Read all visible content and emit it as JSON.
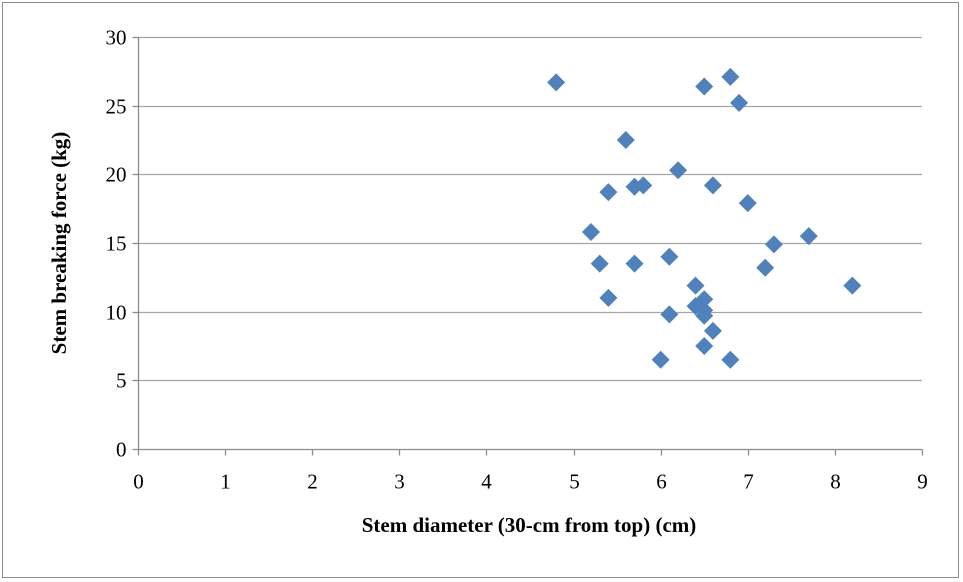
{
  "chart_data": {
    "type": "scatter",
    "title": "",
    "xlabel": "Stem diameter (30-cm from top) (cm)",
    "ylabel": "Stem breaking force (kg)",
    "xlim": [
      0,
      9
    ],
    "ylim": [
      0,
      30
    ],
    "x_ticks": [
      0,
      1,
      2,
      3,
      4,
      5,
      6,
      7,
      8,
      9
    ],
    "y_ticks": [
      0,
      5,
      10,
      15,
      20,
      25,
      30
    ],
    "grid": "horizontal",
    "legend": "none",
    "marker": "diamond",
    "marker_color": "#4f81bd",
    "gridline_color": "#a6a6a6",
    "series": [
      {
        "points": [
          {
            "x": 4.8,
            "y": 26.7
          },
          {
            "x": 6.8,
            "y": 27.1
          },
          {
            "x": 6.5,
            "y": 26.4
          },
          {
            "x": 6.9,
            "y": 25.2
          },
          {
            "x": 5.6,
            "y": 22.5
          },
          {
            "x": 6.2,
            "y": 20.3
          },
          {
            "x": 5.4,
            "y": 18.7
          },
          {
            "x": 5.7,
            "y": 19.1
          },
          {
            "x": 5.8,
            "y": 19.2
          },
          {
            "x": 6.6,
            "y": 19.2
          },
          {
            "x": 7.0,
            "y": 17.9
          },
          {
            "x": 5.2,
            "y": 15.8
          },
          {
            "x": 7.3,
            "y": 14.9
          },
          {
            "x": 7.7,
            "y": 15.5
          },
          {
            "x": 5.3,
            "y": 13.5
          },
          {
            "x": 5.7,
            "y": 13.5
          },
          {
            "x": 6.1,
            "y": 14.0
          },
          {
            "x": 7.2,
            "y": 13.2
          },
          {
            "x": 6.4,
            "y": 11.9
          },
          {
            "x": 8.2,
            "y": 11.9
          },
          {
            "x": 5.4,
            "y": 11.0
          },
          {
            "x": 6.5,
            "y": 10.9
          },
          {
            "x": 6.4,
            "y": 10.4
          },
          {
            "x": 6.5,
            "y": 10.1
          },
          {
            "x": 6.5,
            "y": 9.7
          },
          {
            "x": 6.1,
            "y": 9.8
          },
          {
            "x": 6.6,
            "y": 8.6
          },
          {
            "x": 6.5,
            "y": 7.5
          },
          {
            "x": 6.0,
            "y": 6.5
          },
          {
            "x": 6.8,
            "y": 6.5
          }
        ]
      }
    ]
  }
}
